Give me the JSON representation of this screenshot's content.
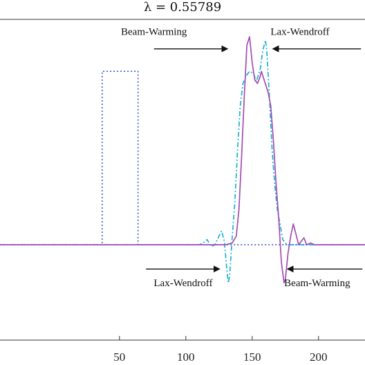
{
  "chart_data": {
    "type": "line",
    "title": "λ = 0.55789",
    "xlabel": "",
    "ylabel": "",
    "xlim": [
      -40,
      235
    ],
    "ylim": [
      -0.55,
      1.3
    ],
    "x_ticks": [
      50,
      100,
      150,
      200
    ],
    "grid": false,
    "colors": {
      "initial": "#3a57c8",
      "lax_wendroff": "#19b0d0",
      "beam_warming": "#a24cb2",
      "arrow": "#111111"
    },
    "series": [
      {
        "key": "initial",
        "style": "dotted",
        "points": [
          [
            -40,
            0
          ],
          [
            37,
            0
          ],
          [
            37,
            1
          ],
          [
            64,
            1
          ],
          [
            64,
            0
          ],
          [
            235,
            0
          ]
        ]
      },
      {
        "key": "lax_wendroff",
        "style": "dashdot",
        "points": [
          [
            -40,
            0
          ],
          [
            110,
            0
          ],
          [
            113,
            0.01
          ],
          [
            116,
            0.03
          ],
          [
            119,
            -0.01
          ],
          [
            122,
            0.0
          ],
          [
            125,
            0.05
          ],
          [
            127,
            0.08
          ],
          [
            129,
            0.02
          ],
          [
            131,
            -0.15
          ],
          [
            132,
            -0.22
          ],
          [
            133,
            -0.18
          ],
          [
            135,
            0.05
          ],
          [
            137,
            0.25
          ],
          [
            139,
            0.55
          ],
          [
            141,
            0.8
          ],
          [
            143,
            0.93
          ],
          [
            146,
            0.98
          ],
          [
            148,
            1.0
          ],
          [
            151,
            0.99
          ],
          [
            153,
            0.94
          ],
          [
            156,
            1.01
          ],
          [
            158,
            1.12
          ],
          [
            160,
            1.18
          ],
          [
            161,
            1.12
          ],
          [
            163,
            0.85
          ],
          [
            165,
            0.55
          ],
          [
            167,
            0.35
          ],
          [
            169,
            0.2
          ],
          [
            171,
            0.12
          ],
          [
            173,
            0.03
          ],
          [
            176,
            0.0
          ],
          [
            235,
            0
          ]
        ]
      },
      {
        "key": "beam_warming",
        "style": "solid",
        "points": [
          [
            -40,
            0
          ],
          [
            120,
            0
          ],
          [
            130,
            0.0
          ],
          [
            135,
            0.01
          ],
          [
            138,
            0.05
          ],
          [
            140,
            0.2
          ],
          [
            142,
            0.5
          ],
          [
            144,
            0.85
          ],
          [
            146,
            1.15
          ],
          [
            148,
            1.2
          ],
          [
            150,
            1.05
          ],
          [
            152,
            0.95
          ],
          [
            154,
            0.93
          ],
          [
            156,
            0.97
          ],
          [
            157,
            1.0
          ],
          [
            159,
            0.95
          ],
          [
            162,
            0.88
          ],
          [
            164,
            0.8
          ],
          [
            166,
            0.6
          ],
          [
            168,
            0.35
          ],
          [
            170,
            0.15
          ],
          [
            172,
            -0.1
          ],
          [
            174,
            -0.22
          ],
          [
            175,
            -0.2
          ],
          [
            177,
            -0.05
          ],
          [
            179,
            0.05
          ],
          [
            181,
            0.12
          ],
          [
            183,
            0.06
          ],
          [
            185,
            0.0
          ],
          [
            187,
            0.02
          ],
          [
            189,
            0.04
          ],
          [
            191,
            0.0
          ],
          [
            194,
            0.01
          ],
          [
            197,
            0.0
          ],
          [
            235,
            0
          ]
        ]
      }
    ],
    "annotations": [
      {
        "key": "bw_top",
        "text": "Beam-Warming",
        "x": 76,
        "y": 1.21,
        "arrow_from": [
          76,
          1.13
        ],
        "arrow_to": [
          131,
          1.13
        ]
      },
      {
        "key": "lw_top",
        "text": "Lax-Wendroff",
        "x": 186,
        "y": 1.21,
        "arrow_from": [
          232,
          1.13
        ],
        "arrow_to": [
          166,
          1.13
        ]
      },
      {
        "key": "lw_bot",
        "text": "Lax-Wendroff",
        "x": 98,
        "y": -0.24,
        "arrow_from": [
          70,
          -0.14
        ],
        "arrow_to": [
          125,
          -0.14
        ]
      },
      {
        "key": "bw_bot",
        "text": "Beam-Warming",
        "x": 199,
        "y": -0.24,
        "arrow_from": [
          233,
          -0.14
        ],
        "arrow_to": [
          177,
          -0.14
        ]
      }
    ]
  }
}
